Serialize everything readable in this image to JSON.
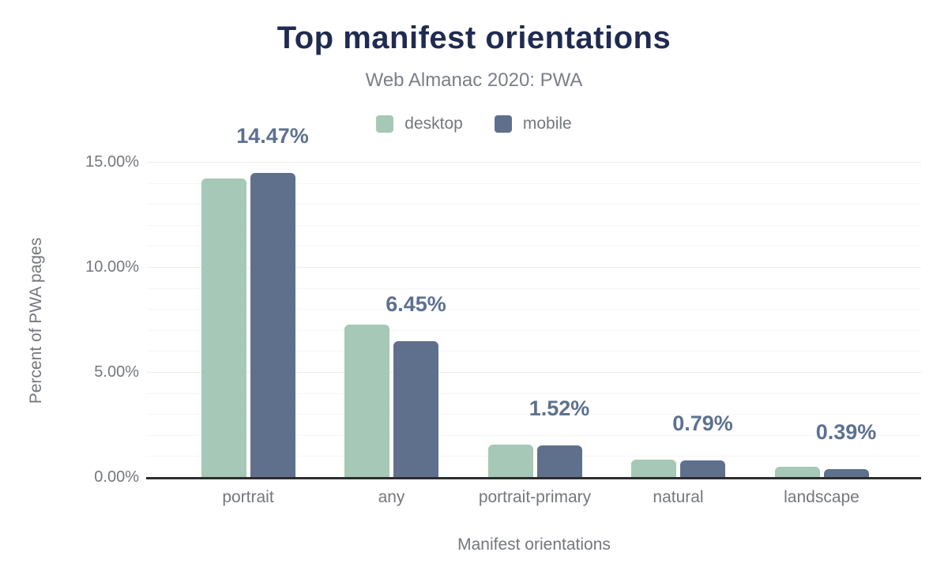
{
  "chart_data": {
    "type": "bar",
    "title": "Top manifest orientations",
    "subtitle": "Web Almanac 2020: PWA",
    "categories": [
      "portrait",
      "any",
      "portrait-primary",
      "natural",
      "landscape"
    ],
    "series": [
      {
        "name": "desktop",
        "color": "#a5c9b6",
        "values": [
          14.2,
          7.25,
          1.56,
          0.81,
          0.5
        ]
      },
      {
        "name": "mobile",
        "color": "#5f708d",
        "values": [
          14.47,
          6.45,
          1.52,
          0.79,
          0.39
        ]
      }
    ],
    "value_labels": {
      "series": "mobile",
      "texts": [
        "14.47%",
        "6.45%",
        "1.52%",
        "0.79%",
        "0.39%"
      ]
    },
    "xlabel": "Manifest orientations",
    "ylabel": "Percent of PWA pages",
    "y_ticks": [
      "0.00%",
      "5.00%",
      "10.00%",
      "15.00%"
    ],
    "y_tick_values": [
      0,
      5,
      10,
      15
    ],
    "ylim": [
      0,
      15
    ],
    "minor_grid_step": 1,
    "grid": true,
    "legend_position": "top"
  },
  "colors": {
    "title": "#1f2b50",
    "subtitle": "#7b7f87",
    "axis_text": "#74777c",
    "value_label": "#5c7192",
    "axis_line": "#2d2d2d",
    "gridline_minor": "#f6f6f6",
    "gridline_major": "#ececec"
  }
}
